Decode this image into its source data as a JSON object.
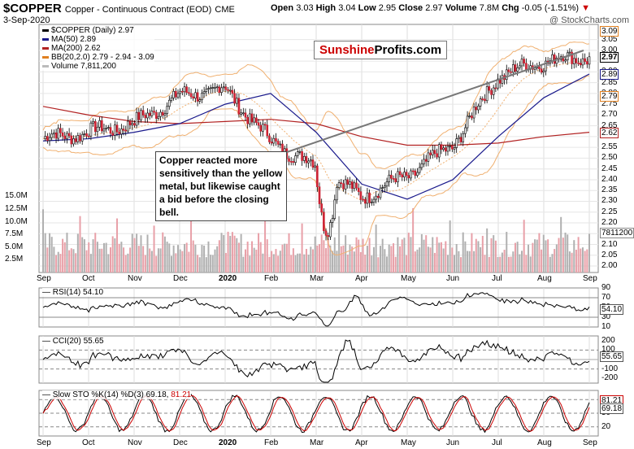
{
  "header": {
    "symbol": "$COPPER",
    "name": "Copper - Continuous Contract (EOD)",
    "exchange": "CME",
    "date": "3-Sep-2020",
    "watermark": "@ StockCharts.com",
    "open_label": "Open",
    "open": "3.03",
    "high_label": "High",
    "high": "3.04",
    "low_label": "Low",
    "low": "2.95",
    "close_label": "Close",
    "close": "2.97",
    "volume_label": "Volume",
    "volume": "7.8M",
    "chg_label": "Chg",
    "chg": "-0.05 (-1.51%)"
  },
  "legend": [
    {
      "text": "$COPPER (Daily) 2.97",
      "color": "#000000"
    },
    {
      "text": "MA(50) 2.89",
      "color": "#1a1a8c"
    },
    {
      "text": "MA(200) 2.62",
      "color": "#b22222"
    },
    {
      "text": "BB(20,2.0) 2.79 - 2.94 - 3.09",
      "color": "#e08020"
    },
    {
      "text": "Volume 7,811,200",
      "color": "#9a9a9a"
    }
  ],
  "brand": {
    "part1": "Sunshine",
    "part2": "Profits.com",
    "color1": "#cc0000",
    "color2": "#000000"
  },
  "annotation": "Copper reacted more sensitively than the yellow metal, but likewise caught a bid before the closing bell.",
  "price_axis": [
    "3.05",
    "3.00",
    "2.95",
    "2.90",
    "2.85",
    "2.80",
    "2.75",
    "2.70",
    "2.65",
    "2.60",
    "2.55",
    "2.50",
    "2.45",
    "2.40",
    "2.35",
    "2.30",
    "2.25",
    "2.20",
    "2.15",
    "2.10",
    "2.05",
    "2.00"
  ],
  "price_tags": [
    {
      "text": "3.09",
      "color": "#e08020"
    },
    {
      "text": "2.97",
      "color": "#000000"
    },
    {
      "text": "2.89",
      "color": "#1a1a8c"
    },
    {
      "text": "2.79",
      "color": "#e08020"
    },
    {
      "text": "2.62",
      "color": "#b22222"
    }
  ],
  "volume_axis": [
    "15.0M",
    "12.5M",
    "10.0M",
    "7.5M",
    "5.0M",
    "2.5M"
  ],
  "volume_tag": "7811200",
  "x_labels": [
    "Sep",
    "Oct",
    "Nov",
    "Dec",
    "2020",
    "Feb",
    "Mar",
    "Apr",
    "May",
    "Jun",
    "Jul",
    "Aug",
    "Sep"
  ],
  "rsi": {
    "label": "RSI(14) 54.10",
    "axis": [
      "90",
      "70",
      "50",
      "30",
      "10"
    ],
    "tag": "54.10"
  },
  "cci": {
    "label": "CCI(20) 55.65",
    "axis": [
      "200",
      "100",
      "0",
      "-100",
      "-200"
    ],
    "tag": "55.65"
  },
  "sto": {
    "label_prefix": "Slow STO %K(14) %D(3) 69.18,",
    "label_red": "81.21",
    "axis": [
      "80",
      "50",
      "20"
    ],
    "tag_k": "81.21",
    "tag_d": "69.18"
  },
  "chart_data": {
    "type": "line",
    "title": "$COPPER Copper - Continuous Contract (EOD)",
    "x_range": [
      "2019-09-03",
      "2020-09-03"
    ],
    "ylim": [
      1.97,
      3.12
    ],
    "close_monthly": {
      "x": [
        "Sep",
        "Oct",
        "Nov",
        "Dec",
        "2020",
        "Feb",
        "Mar",
        "Apr",
        "May",
        "Jun",
        "Jul",
        "Aug",
        "Sep"
      ],
      "values": [
        2.59,
        2.62,
        2.66,
        2.79,
        2.82,
        2.58,
        2.46,
        2.32,
        2.42,
        2.56,
        2.88,
        2.95,
        2.97
      ]
    },
    "ma50_monthly": [
      2.58,
      2.59,
      2.62,
      2.66,
      2.75,
      2.8,
      2.62,
      2.38,
      2.31,
      2.4,
      2.6,
      2.78,
      2.89
    ],
    "ma200_monthly": [
      2.74,
      2.7,
      2.67,
      2.66,
      2.67,
      2.68,
      2.66,
      2.6,
      2.56,
      2.56,
      2.57,
      2.6,
      2.62
    ],
    "volume_range_m": [
      0,
      16
    ],
    "rsi_range": [
      10,
      90
    ],
    "cci_range": [
      -250,
      250
    ],
    "sto_range": [
      0,
      100
    ]
  }
}
